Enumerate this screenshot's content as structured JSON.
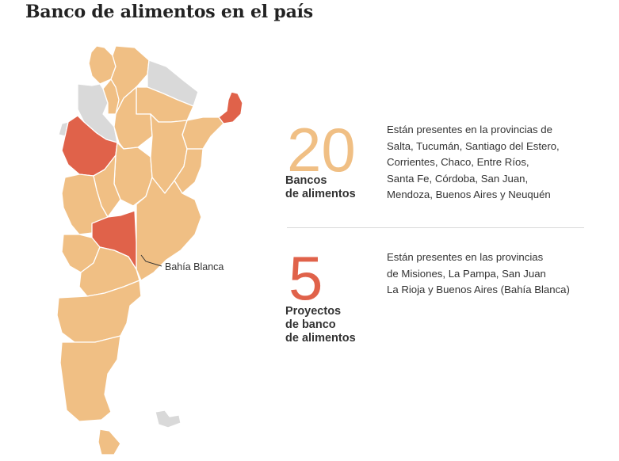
{
  "title": "Banco de alimentos en el país",
  "colors": {
    "bancos": "#f0bf84",
    "proyectos": "#e0624a",
    "sin_datos": "#d9d9d9",
    "borde": "#ffffff"
  },
  "map": {
    "label_bahia_blanca": "Bahía Blanca",
    "regions_bancos": [
      "Salta",
      "Tucumán",
      "Santiago del Estero",
      "Corrientes",
      "Chaco",
      "Entre Ríos",
      "Santa Fe",
      "Córdoba",
      "San Juan",
      "Mendoza",
      "Buenos Aires",
      "Neuquén"
    ],
    "regions_proyectos": [
      "Misiones",
      "La Pampa",
      "San Juan",
      "La Rioja",
      "Buenos Aires (Bahía Blanca)"
    ]
  },
  "stats": {
    "bancos": {
      "number": "20",
      "label": "Bancos\nde alimentos",
      "description": "Están presentes en la provincias de\nSalta, Tucumán, Santiago del Estero,\nCorrientes, Chaco, Entre Ríos,\nSanta Fe, Córdoba, San Juan,\nMendoza, Buenos Aires y Neuquén"
    },
    "proyectos": {
      "number": "5",
      "label": "Proyectos\nde banco\nde alimentos",
      "description": "Están presentes en las provincias\nde Misiones, La Pampa, San Juan\nLa Rioja y Buenos Aires (Bahía Blanca)"
    }
  }
}
